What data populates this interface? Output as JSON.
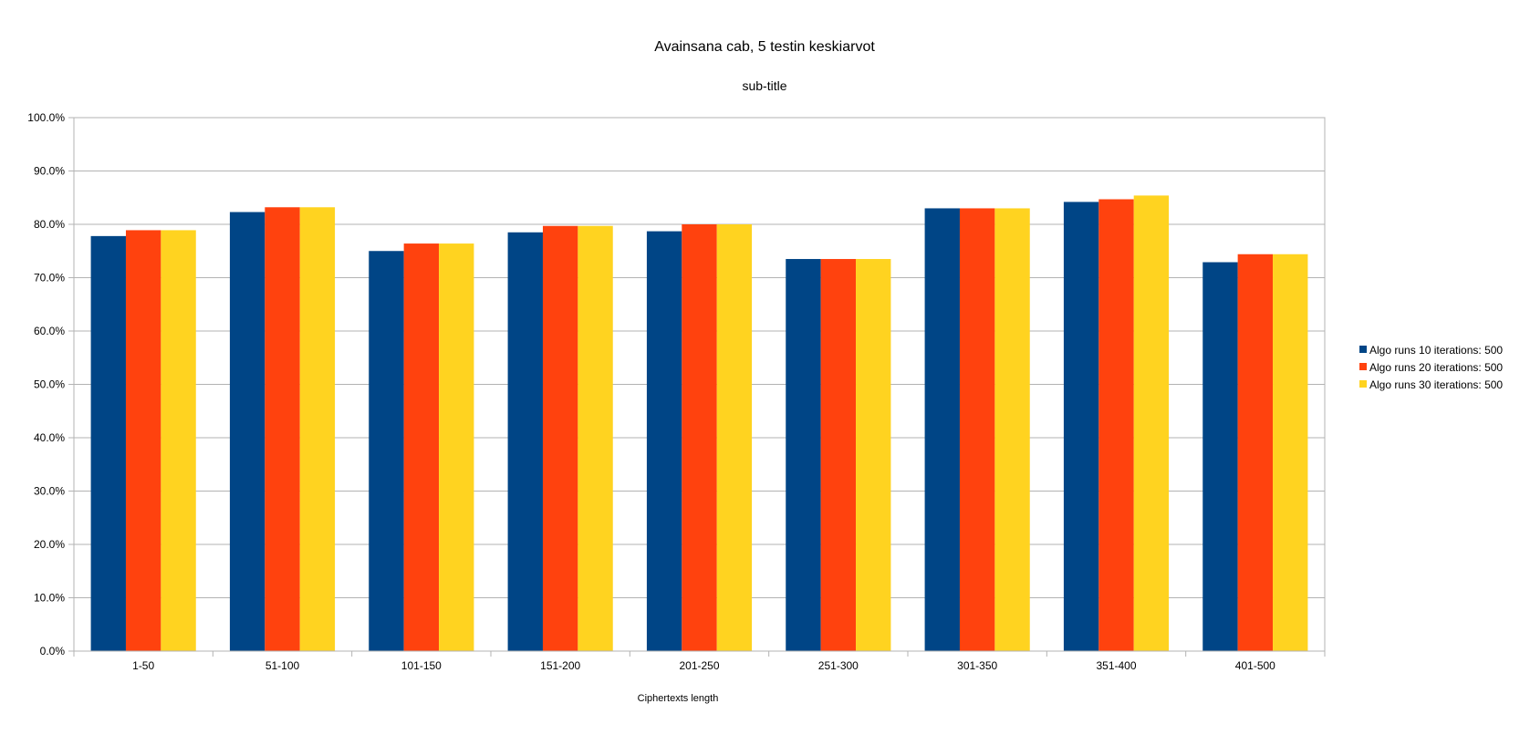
{
  "chart_data": {
    "type": "bar",
    "title": "Avainsana cab, 5 testin keskiarvot",
    "subtitle": "sub-title",
    "xlabel": "Ciphertexts length",
    "ylabel": "",
    "ylim": [
      0,
      100
    ],
    "y_ticks": [
      "0.0%",
      "10.0%",
      "20.0%",
      "30.0%",
      "40.0%",
      "50.0%",
      "60.0%",
      "70.0%",
      "80.0%",
      "90.0%",
      "100.0%"
    ],
    "categories": [
      "1-50",
      "51-100",
      "101-150",
      "151-200",
      "201-250",
      "251-300",
      "301-350",
      "351-400",
      "401-500"
    ],
    "series": [
      {
        "name": "Algo runs 10 iterations: 500",
        "color": "#004586",
        "values": [
          77.8,
          82.3,
          75.0,
          78.5,
          78.7,
          73.5,
          83.0,
          84.2,
          72.9
        ]
      },
      {
        "name": "Algo runs 20 iterations: 500",
        "color": "#ff420e",
        "values": [
          78.9,
          83.2,
          76.4,
          79.7,
          80.0,
          73.5,
          83.0,
          84.7,
          74.4
        ]
      },
      {
        "name": "Algo runs 30 iterations: 500",
        "color": "#ffd320",
        "values": [
          78.9,
          83.2,
          76.4,
          79.7,
          80.0,
          73.5,
          83.0,
          85.4,
          74.4
        ]
      }
    ],
    "grid": true,
    "legend_position": "right"
  }
}
